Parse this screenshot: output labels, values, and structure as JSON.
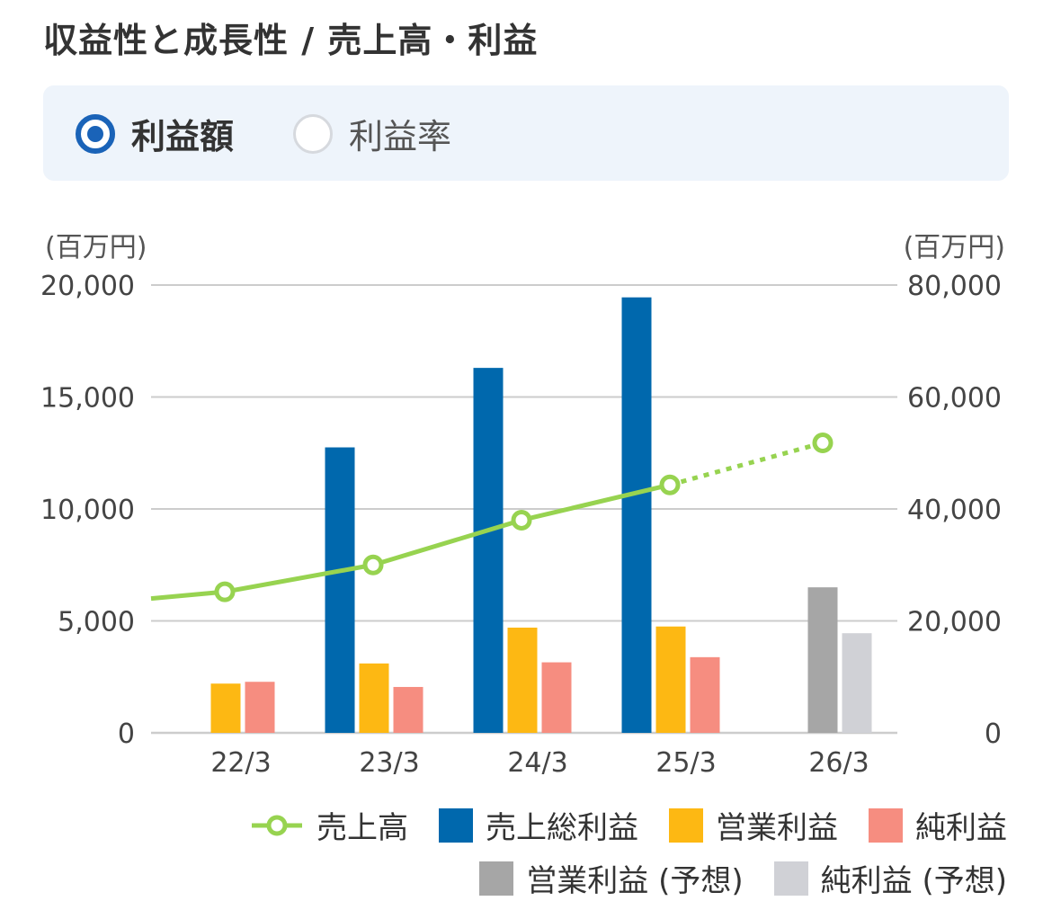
{
  "header": {
    "title": "収益性と成長性 / 売上高・利益"
  },
  "toggle": {
    "options": [
      {
        "label": "利益額",
        "selected": true
      },
      {
        "label": "利益率",
        "selected": false
      }
    ]
  },
  "colors": {
    "sales": "#97d350",
    "gross_profit": "#0068ad",
    "operating_profit": "#fdb813",
    "net_profit": "#f68d80",
    "operating_forecast": "#a6a6a6",
    "net_forecast": "#d0d1d6",
    "grid": "#cccccc",
    "selected": "#1a63b8"
  },
  "chart_data": {
    "type": "bar",
    "categories": [
      "22/3",
      "23/3",
      "24/3",
      "25/3",
      "26/3"
    ],
    "left_axis": {
      "unit": "(百万円)",
      "ylim": [
        0,
        20000
      ],
      "ticks": [
        0,
        5000,
        10000,
        15000,
        20000
      ],
      "tick_labels": [
        "0",
        "5,000",
        "10,000",
        "15,000",
        "20,000"
      ]
    },
    "right_axis": {
      "unit": "(百万円)",
      "ylim": [
        0,
        80000
      ],
      "ticks": [
        0,
        20000,
        40000,
        60000,
        80000
      ],
      "tick_labels": [
        "0",
        "20,000",
        "40,000",
        "60,000",
        "80,000"
      ]
    },
    "series": [
      {
        "name": "売上総利益",
        "type": "bar",
        "axis": "left",
        "color_key": "gross_profit",
        "values": [
          null,
          12750,
          16300,
          19450,
          null
        ]
      },
      {
        "name": "営業利益",
        "type": "bar",
        "axis": "left",
        "color_key": "operating_profit",
        "values": [
          2200,
          3100,
          4700,
          4750,
          null
        ]
      },
      {
        "name": "純利益",
        "type": "bar",
        "axis": "left",
        "color_key": "net_profit",
        "values": [
          2280,
          2050,
          3150,
          3380,
          null
        ]
      },
      {
        "name": "営業利益 (予想)",
        "type": "bar",
        "axis": "left",
        "color_key": "operating_forecast",
        "values": [
          null,
          null,
          null,
          null,
          6500
        ]
      },
      {
        "name": "純利益 (予想)",
        "type": "bar",
        "axis": "left",
        "color_key": "net_forecast",
        "values": [
          null,
          null,
          null,
          null,
          4450
        ]
      },
      {
        "name": "売上高",
        "type": "line",
        "axis": "right",
        "color_key": "sales",
        "values": [
          25200,
          30000,
          38000,
          44300,
          51800
        ],
        "forecast_from_index": 3,
        "start_value": 24000
      }
    ],
    "legend": {
      "row1": [
        {
          "label": "売上高",
          "kind": "line",
          "color_key": "sales"
        },
        {
          "label": "売上総利益",
          "kind": "box",
          "color_key": "gross_profit"
        },
        {
          "label": "営業利益",
          "kind": "box",
          "color_key": "operating_profit"
        },
        {
          "label": "純利益",
          "kind": "box",
          "color_key": "net_profit"
        }
      ],
      "row2": [
        {
          "label": "営業利益 (予想)",
          "kind": "box",
          "color_key": "operating_forecast"
        },
        {
          "label": "純利益 (予想)",
          "kind": "box",
          "color_key": "net_forecast"
        }
      ]
    }
  }
}
